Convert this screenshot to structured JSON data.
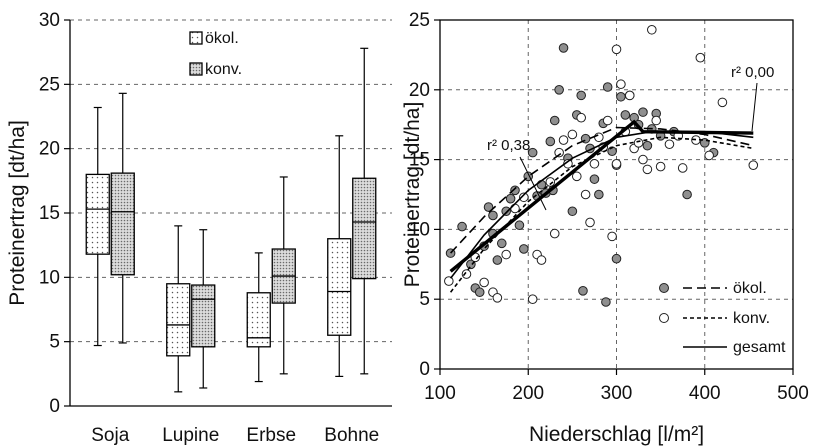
{
  "chart_data": [
    {
      "type": "box",
      "ylabel": "Proteinertrag [dt/ha]",
      "ylim": [
        0,
        30
      ],
      "yticks": [
        0,
        5,
        10,
        15,
        20,
        25,
        30
      ],
      "grid": "horizontal dashed",
      "categories": [
        "Soja",
        "Lupine",
        "Erbse",
        "Bohne"
      ],
      "legend": {
        "position": "top-center",
        "entries": [
          "ökol.",
          "konv."
        ]
      },
      "series": [
        {
          "name": "ökol.",
          "pattern": "dotted",
          "boxes": [
            {
              "min": 4.7,
              "q1": 11.8,
              "median": 15.3,
              "q3": 18.0,
              "max": 23.2
            },
            {
              "min": 1.1,
              "q1": 3.9,
              "median": 6.3,
              "q3": 9.5,
              "max": 14.0
            },
            {
              "min": 1.9,
              "q1": 4.6,
              "median": 5.3,
              "q3": 8.8,
              "max": 11.9
            },
            {
              "min": 2.3,
              "q1": 5.5,
              "median": 8.9,
              "q3": 13.0,
              "max": 21.0
            }
          ]
        },
        {
          "name": "konv.",
          "pattern": "dense-dotted",
          "boxes": [
            {
              "min": 4.9,
              "q1": 10.2,
              "median": 15.1,
              "q3": 18.1,
              "max": 24.3
            },
            {
              "min": 1.4,
              "q1": 4.6,
              "median": 8.3,
              "q3": 9.4,
              "max": 13.7
            },
            {
              "min": 2.5,
              "q1": 8.0,
              "median": 10.1,
              "q3": 12.2,
              "max": 17.8
            },
            {
              "min": 2.5,
              "q1": 9.9,
              "median": 14.3,
              "q3": 17.7,
              "max": 27.8
            }
          ]
        }
      ]
    },
    {
      "type": "scatter",
      "xlabel": "Niederschlag [l/m²]",
      "ylabel": "Proteinertrag [dt/ha]",
      "xlim": [
        100,
        500
      ],
      "ylim": [
        0,
        25
      ],
      "xticks": [
        100,
        200,
        300,
        400,
        500
      ],
      "yticks": [
        0,
        5,
        10,
        15,
        20,
        25
      ],
      "grid": "dashed both axes",
      "legend": {
        "position": "bottom-right",
        "entries": [
          "ökol.",
          "konv.",
          "gesamt"
        ]
      },
      "annotations": [
        "r² 0,38",
        "r² 0,00"
      ],
      "series": [
        {
          "name": "ökol.",
          "marker": "filled-gray-circle",
          "points": [
            [
              112,
              8.3
            ],
            [
              125,
              10.2
            ],
            [
              135,
              7.5
            ],
            [
              140,
              5.8
            ],
            [
              145,
              5.5
            ],
            [
              150,
              8.8
            ],
            [
              155,
              11.6
            ],
            [
              160,
              9.7
            ],
            [
              165,
              7.8
            ],
            [
              170,
              9.0
            ],
            [
              175,
              11.3
            ],
            [
              180,
              12.2
            ],
            [
              185,
              12.8
            ],
            [
              190,
              10.3
            ],
            [
              195,
              8.6
            ],
            [
              200,
              13.8
            ],
            [
              205,
              15.5
            ],
            [
              210,
              12.4
            ],
            [
              215,
              13.2
            ],
            [
              220,
              12.6
            ],
            [
              225,
              16.3
            ],
            [
              230,
              17.8
            ],
            [
              235,
              20.0
            ],
            [
              240,
              23.0
            ],
            [
              245,
              15.1
            ],
            [
              250,
              11.3
            ],
            [
              255,
              18.2
            ],
            [
              260,
              19.6
            ],
            [
              265,
              16.5
            ],
            [
              270,
              15.8
            ],
            [
              275,
              13.6
            ],
            [
              280,
              12.5
            ],
            [
              285,
              17.6
            ],
            [
              290,
              20.2
            ],
            [
              295,
              15.6
            ],
            [
              300,
              14.6
            ],
            [
              305,
              19.5
            ],
            [
              310,
              18.2
            ],
            [
              315,
              19.6
            ],
            [
              320,
              18.0
            ],
            [
              325,
              17.5
            ],
            [
              330,
              18.4
            ],
            [
              335,
              16.0
            ],
            [
              340,
              17.2
            ],
            [
              345,
              18.3
            ],
            [
              350,
              16.7
            ],
            [
              365,
              17.0
            ],
            [
              380,
              12.5
            ],
            [
              400,
              16.2
            ],
            [
              410,
              15.5
            ],
            [
              228,
              12.8
            ],
            [
              262,
              5.6
            ],
            [
              288,
              4.8
            ],
            [
              300,
              7.9
            ],
            [
              160,
              11.0
            ]
          ]
        },
        {
          "name": "konv.",
          "marker": "open-circle",
          "points": [
            [
              110,
              6.3
            ],
            [
              130,
              6.8
            ],
            [
              140,
              8.0
            ],
            [
              150,
              6.2
            ],
            [
              160,
              5.5
            ],
            [
              165,
              5.1
            ],
            [
              175,
              8.2
            ],
            [
              185,
              11.5
            ],
            [
              195,
              12.3
            ],
            [
              205,
              5.0
            ],
            [
              210,
              8.2
            ],
            [
              215,
              7.8
            ],
            [
              225,
              13.4
            ],
            [
              235,
              15.5
            ],
            [
              240,
              16.4
            ],
            [
              245,
              14.7
            ],
            [
              250,
              16.8
            ],
            [
              255,
              13.8
            ],
            [
              260,
              18.0
            ],
            [
              265,
              12.5
            ],
            [
              275,
              14.7
            ],
            [
              280,
              16.6
            ],
            [
              285,
              15.9
            ],
            [
              290,
              17.8
            ],
            [
              295,
              9.5
            ],
            [
              300,
              14.7
            ],
            [
              305,
              20.4
            ],
            [
              310,
              17.0
            ],
            [
              315,
              19.6
            ],
            [
              320,
              15.8
            ],
            [
              325,
              16.2
            ],
            [
              330,
              15.0
            ],
            [
              335,
              14.3
            ],
            [
              340,
              24.3
            ],
            [
              345,
              17.8
            ],
            [
              350,
              14.5
            ],
            [
              360,
              16.1
            ],
            [
              370,
              16.7
            ],
            [
              375,
              14.4
            ],
            [
              390,
              16.4
            ],
            [
              395,
              22.3
            ],
            [
              405,
              15.3
            ],
            [
              420,
              19.1
            ],
            [
              455,
              14.6
            ],
            [
              300,
              22.9
            ],
            [
              270,
              10.5
            ],
            [
              230,
              9.7
            ]
          ]
        }
      ],
      "fits": [
        {
          "name": "ökol.",
          "style": "long-dash",
          "points": [
            [
              112,
              8.3
            ],
            [
              150,
              10.9
            ],
            [
              200,
              13.8
            ],
            [
              250,
              16.0
            ],
            [
              300,
              17.3
            ],
            [
              350,
              17.2
            ],
            [
              400,
              16.8
            ],
            [
              455,
              16.0
            ]
          ]
        },
        {
          "name": "konv.",
          "style": "short-dash",
          "points": [
            [
              112,
              5.5
            ],
            [
              150,
              8.6
            ],
            [
              200,
              12.0
            ],
            [
              250,
              14.5
            ],
            [
              300,
              16.0
            ],
            [
              350,
              16.6
            ],
            [
              400,
              16.4
            ],
            [
              455,
              15.8
            ]
          ]
        },
        {
          "name": "gesamt",
          "style": "solid-thin",
          "points": [
            [
              112,
              6.5
            ],
            [
              150,
              9.6
            ],
            [
              200,
              12.8
            ],
            [
              250,
              15.1
            ],
            [
              300,
              16.6
            ],
            [
              340,
              17.0
            ],
            [
              400,
              17.0
            ],
            [
              455,
              16.6
            ]
          ]
        },
        {
          "name": "",
          "style": "solid-bold",
          "points": [
            [
              112,
              7.0
            ],
            [
              320,
              17.7
            ],
            [
              330,
              17.0
            ],
            [
              455,
              16.9
            ]
          ]
        }
      ]
    }
  ]
}
